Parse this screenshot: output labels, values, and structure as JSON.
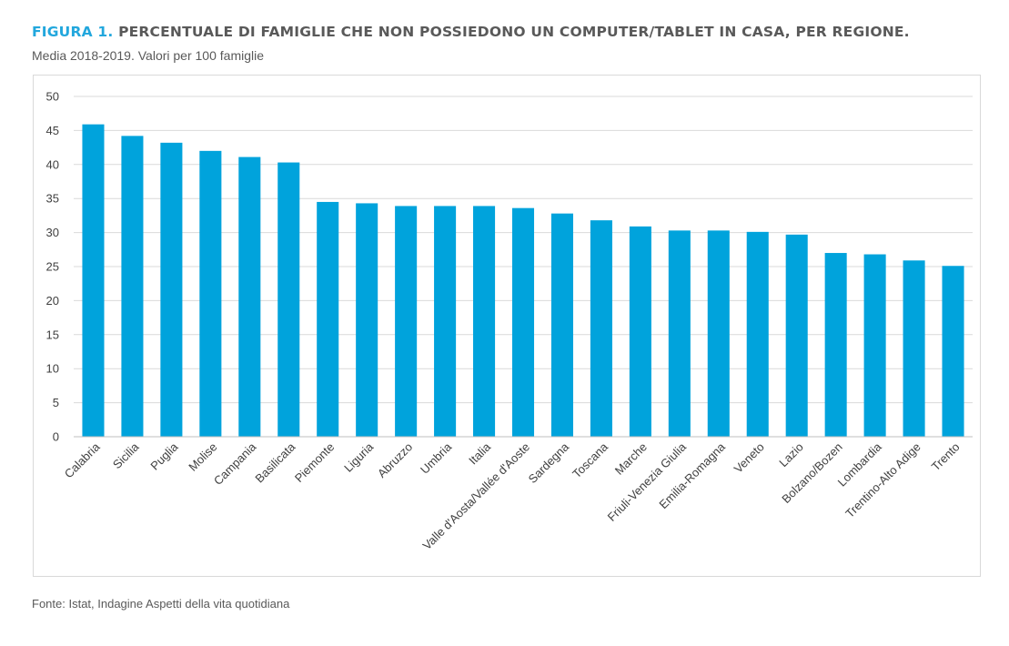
{
  "header": {
    "label": "FIGURA 1.",
    "title": " PERCENTUALE DI FAMIGLIE CHE NON POSSIEDONO UN COMPUTER/TABLET IN CASA, PER REGIONE.",
    "subtitle": "Media 2018-2019. Valori per 100 famiglie",
    "label_color": "#22a7dd"
  },
  "footer": {
    "source": "Fonte: Istat, Indagine Aspetti della vita quotidiana"
  },
  "chart_data": {
    "type": "bar",
    "title": "PERCENTUALE DI FAMIGLIE CHE NON POSSIEDONO UN COMPUTER/TABLET IN CASA, PER REGIONE.",
    "subtitle": "Media 2018-2019. Valori per 100 famiglie",
    "xlabel": "",
    "ylabel": "",
    "ylim": [
      0,
      50
    ],
    "yticks": [
      0,
      5,
      10,
      15,
      20,
      25,
      30,
      35,
      40,
      45,
      50
    ],
    "grid": true,
    "legend": "none",
    "bar_color": "#00a3dc",
    "categories": [
      "Calabria",
      "Sicilia",
      "Puglia",
      "Molise",
      "Campania",
      "Basilicata",
      "Piemonte",
      "Liguria",
      "Abruzzo",
      "Umbria",
      "Italia",
      "Valle d'Aosta/Vallée d'Aoste",
      "Sardegna",
      "Toscana",
      "Marche",
      "Friuli-Venezia Giulia",
      "Emilia-Romagna",
      "Veneto",
      "Lazio",
      "Bolzano/Bozen",
      "Lombardia",
      "Trentino-Alto Adige",
      "Trento"
    ],
    "values": [
      45.9,
      44.2,
      43.2,
      42.0,
      41.1,
      40.3,
      34.5,
      34.3,
      33.9,
      33.9,
      33.9,
      33.6,
      32.8,
      31.8,
      30.9,
      30.3,
      30.3,
      30.1,
      29.7,
      27.0,
      26.8,
      25.9,
      25.1
    ]
  }
}
